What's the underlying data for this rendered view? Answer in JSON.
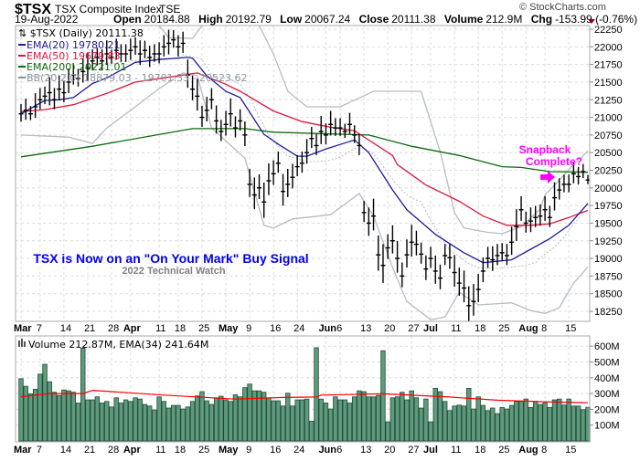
{
  "header": {
    "symbol": "$TSX",
    "name": "TSX Composite Index",
    "exchange": "TSE",
    "date": "19-Aug-2022",
    "open_label": "Open",
    "open": "20184.88",
    "high_label": "High",
    "high": "20192.79",
    "low_label": "Low",
    "low": "20067.24",
    "close_label": "Close",
    "close": "20111.38",
    "volume_label": "Volume",
    "volume": "212.9M",
    "chg_label": "Chg",
    "chg": "-153.99 (-0.76%)",
    "watermark": "© StockCharts.com"
  },
  "colors": {
    "ema20": "#1c1c9c",
    "ema50": "#e0143c",
    "ema200": "#0a6a0a",
    "bb": "#b4bcc4",
    "vol_fill": "#5f9a7c",
    "vol_stroke": "#1f4d37",
    "vol_ema": "#ff0000",
    "annot_main": "#0000ee",
    "annot_sub": "#808080",
    "annot_snap": "#ff00ff"
  },
  "legend": {
    "price": "⇅ $TSX (Daily) 20111.38",
    "ema20": "EMA(20) 19780.21",
    "ema50": "EMA(50) 19679.83",
    "ema200": "EMA(200) 20221.01",
    "bb": "BB(20,2.0) 18879.03 - 19701.33 - 20523.62",
    "volume": "Volume 212.87M, EMA(34) 241.64M"
  },
  "annotations": {
    "main": "TSX is Now on an \"On Your Mark\" Buy Signal",
    "sub": "2022 Technical Watch",
    "snap1": "Snapback",
    "snap2": "Complete?"
  },
  "chart_data": {
    "type": "ohlc-bar",
    "title": "TSX Composite Index (Daily)",
    "price_ticks": [
      22250,
      22000,
      21750,
      21500,
      21250,
      21000,
      20750,
      20500,
      20250,
      20000,
      19750,
      19500,
      19250,
      19000,
      18750,
      18500,
      18250
    ],
    "ylim": [
      18200,
      22300
    ],
    "volume_ticks": [
      {
        "v": 600,
        "label": "600M"
      },
      {
        "v": 500,
        "label": "500M"
      },
      {
        "v": 400,
        "label": "400M"
      },
      {
        "v": 300,
        "label": "300M"
      },
      {
        "v": 200,
        "label": "200M"
      },
      {
        "v": 100,
        "label": "100M"
      }
    ],
    "date_labels": [
      {
        "i": 0,
        "label": "Mar",
        "bold": true
      },
      {
        "i": 4,
        "label": "7"
      },
      {
        "i": 9,
        "label": "14"
      },
      {
        "i": 14,
        "label": "21"
      },
      {
        "i": 19,
        "label": "28"
      },
      {
        "i": 23,
        "label": "Apr",
        "bold": true
      },
      {
        "i": 29,
        "label": "11"
      },
      {
        "i": 33,
        "label": "18"
      },
      {
        "i": 38,
        "label": "25"
      },
      {
        "i": 43,
        "label": "May",
        "bold": true
      },
      {
        "i": 48,
        "label": "9"
      },
      {
        "i": 53,
        "label": "16"
      },
      {
        "i": 58,
        "label": "24"
      },
      {
        "i": 64,
        "label": "Jun",
        "bold": true
      },
      {
        "i": 67,
        "label": "6"
      },
      {
        "i": 72,
        "label": "13"
      },
      {
        "i": 77,
        "label": "20"
      },
      {
        "i": 82,
        "label": "27"
      },
      {
        "i": 86,
        "label": "Jul",
        "bold": true
      },
      {
        "i": 91,
        "label": "11"
      },
      {
        "i": 96,
        "label": "18"
      },
      {
        "i": 101,
        "label": "25"
      },
      {
        "i": 106,
        "label": "Aug",
        "bold": true
      },
      {
        "i": 110,
        "label": "8"
      },
      {
        "i": 115,
        "label": "15"
      }
    ],
    "close": [
      21050,
      21100,
      21050,
      21150,
      21250,
      21300,
      21350,
      21250,
      21400,
      21350,
      21500,
      21600,
      21550,
      21650,
      21700,
      21800,
      21850,
      21800,
      21900,
      21850,
      21950,
      21900,
      21900,
      21950,
      22000,
      21900,
      21950,
      21850,
      21900,
      21900,
      22000,
      22050,
      22100,
      22000,
      22050,
      21600,
      21400,
      21300,
      21000,
      21100,
      21250,
      20950,
      20800,
      20900,
      21050,
      20850,
      20950,
      20750,
      20050,
      19900,
      20000,
      19800,
      20100,
      20200,
      20350,
      19950,
      20050,
      20150,
      20300,
      20350,
      20500,
      20700,
      20600,
      20800,
      20750,
      20900,
      20850,
      20850,
      20800,
      20900,
      20750,
      20600,
      19650,
      19500,
      19600,
      19050,
      18900,
      19150,
      19250,
      19000,
      18750,
      19050,
      19230,
      19200,
      19060,
      18850,
      19000,
      18820,
      18720,
      19040,
      19010,
      18800,
      18650,
      18580,
      18330,
      18390,
      18560,
      18820,
      19000,
      18980,
      19040,
      19080,
      19040,
      19230,
      19450,
      19690,
      19500,
      19530,
      19580,
      19600,
      19690,
      19580,
      19860,
      19970,
      20050,
      20050,
      20200,
      20160,
      20230,
      20111.38
    ],
    "range": [
      250,
      300,
      200,
      350,
      300,
      250,
      400,
      300,
      350,
      300,
      350,
      300,
      250,
      350,
      400,
      300,
      250,
      300,
      350,
      200,
      300,
      250,
      250,
      300,
      250,
      350,
      250,
      300,
      250,
      300,
      300,
      350,
      250,
      300,
      300,
      400,
      350,
      450,
      300,
      350,
      300,
      400,
      300,
      350,
      400,
      300,
      300,
      350,
      400,
      450,
      350,
      500,
      450,
      350,
      300,
      450,
      400,
      350,
      300,
      300,
      350,
      300,
      300,
      400,
      300,
      350,
      250,
      250,
      200,
      300,
      250,
      300,
      300,
      400,
      450,
      500,
      550,
      350,
      400,
      450,
      350,
      400,
      450,
      350,
      300,
      350,
      300,
      400,
      350,
      300,
      350,
      450,
      400,
      450,
      500,
      450,
      400,
      350,
      300,
      350,
      300,
      250,
      300,
      400,
      450,
      350,
      300,
      350,
      300,
      300,
      350,
      300,
      400,
      300,
      250,
      250,
      300,
      250,
      200,
      130
    ],
    "ema20": [
      [
        0,
        21050
      ],
      [
        5,
        21240
      ],
      [
        8,
        21250
      ],
      [
        11,
        21280
      ],
      [
        15,
        21480
      ],
      [
        18,
        21560
      ],
      [
        24,
        21780
      ],
      [
        29,
        21820
      ],
      [
        35,
        21850
      ],
      [
        36,
        21840
      ],
      [
        39,
        21590
      ],
      [
        43,
        21370
      ],
      [
        46,
        21280
      ],
      [
        51,
        20760
      ],
      [
        54,
        20620
      ],
      [
        58,
        20450
      ],
      [
        60,
        20450
      ],
      [
        64,
        20550
      ],
      [
        70,
        20680
      ],
      [
        73,
        20500
      ],
      [
        78,
        19970
      ],
      [
        81,
        19690
      ],
      [
        87,
        19340
      ],
      [
        93,
        19080
      ],
      [
        97,
        18940
      ],
      [
        103,
        18980
      ],
      [
        107,
        19130
      ],
      [
        111,
        19280
      ],
      [
        115,
        19470
      ],
      [
        119,
        19780.21
      ]
    ],
    "ema50": [
      [
        0,
        21080
      ],
      [
        5,
        21110
      ],
      [
        11,
        21180
      ],
      [
        18,
        21340
      ],
      [
        24,
        21500
      ],
      [
        30,
        21560
      ],
      [
        37,
        21630
      ],
      [
        43,
        21470
      ],
      [
        46,
        21370
      ],
      [
        53,
        21090
      ],
      [
        59,
        20940
      ],
      [
        65,
        20860
      ],
      [
        70,
        20810
      ],
      [
        78,
        20460
      ],
      [
        79,
        20330
      ],
      [
        85,
        20040
      ],
      [
        92,
        19810
      ],
      [
        97,
        19600
      ],
      [
        102,
        19470
      ],
      [
        107,
        19470
      ],
      [
        111,
        19490
      ],
      [
        115,
        19580
      ],
      [
        119,
        19679.83
      ]
    ],
    "ema200": [
      [
        0,
        20440
      ],
      [
        15,
        20590
      ],
      [
        36,
        20840
      ],
      [
        47,
        20840
      ],
      [
        53,
        20790
      ],
      [
        73,
        20750
      ],
      [
        82,
        20590
      ],
      [
        92,
        20460
      ],
      [
        101,
        20300
      ],
      [
        105,
        20290
      ],
      [
        111,
        20230
      ],
      [
        119,
        20221.01
      ]
    ],
    "bb_upper": [
      [
        0,
        22400
      ],
      [
        20,
        22600
      ],
      [
        29,
        22300
      ],
      [
        31,
        22130
      ],
      [
        36,
        22120
      ],
      [
        38,
        22300
      ],
      [
        45,
        22500
      ],
      [
        50,
        22300
      ],
      [
        53,
        21900
      ],
      [
        56,
        21370
      ],
      [
        60,
        21150
      ],
      [
        67,
        21150
      ],
      [
        74,
        21370
      ],
      [
        84,
        21370
      ],
      [
        88,
        20510
      ],
      [
        91,
        19650
      ],
      [
        93,
        19430
      ],
      [
        98,
        19370
      ],
      [
        101,
        19350
      ],
      [
        105,
        19450
      ],
      [
        109,
        19700
      ],
      [
        110,
        19900
      ],
      [
        113,
        20110
      ],
      [
        116,
        20330
      ],
      [
        119,
        20523.62
      ]
    ],
    "bb_lower": [
      [
        0,
        20750
      ],
      [
        10,
        20720
      ],
      [
        15,
        20630
      ],
      [
        18,
        20850
      ],
      [
        24,
        21150
      ],
      [
        29,
        21410
      ],
      [
        34,
        21630
      ],
      [
        37,
        21590
      ],
      [
        40,
        20850
      ],
      [
        47,
        20420
      ],
      [
        51,
        19470
      ],
      [
        53,
        19430
      ],
      [
        57,
        19560
      ],
      [
        65,
        19620
      ],
      [
        71,
        19920
      ],
      [
        74,
        19600
      ],
      [
        78,
        18870
      ],
      [
        81,
        18390
      ],
      [
        86,
        18130
      ],
      [
        89,
        18170
      ],
      [
        92,
        18520
      ],
      [
        96,
        18340
      ],
      [
        103,
        18370
      ],
      [
        107,
        18260
      ],
      [
        110,
        18220
      ],
      [
        113,
        18300
      ],
      [
        116,
        18650
      ],
      [
        119,
        18879.03
      ]
    ],
    "volume_m": [
      394,
      346,
      298,
      327,
      423,
      485,
      375,
      308,
      288,
      323,
      317,
      308,
      240,
      587,
      260,
      260,
      279,
      240,
      250,
      215,
      273,
      240,
      260,
      250,
      273,
      265,
      231,
      221,
      196,
      279,
      250,
      208,
      225,
      225,
      202,
      215,
      250,
      285,
      312,
      254,
      231,
      273,
      283,
      260,
      250,
      292,
      279,
      337,
      360,
      317,
      317,
      308,
      273,
      254,
      254,
      221,
      302,
      221,
      260,
      260,
      265,
      125,
      590,
      265,
      240,
      202,
      279,
      260,
      260,
      240,
      279,
      317,
      312,
      279,
      279,
      288,
      571,
      121,
      273,
      279,
      308,
      260,
      317,
      273,
      208,
      265,
      121,
      333,
      312,
      250,
      192,
      221,
      227,
      221,
      333,
      202,
      279,
      225,
      192,
      208,
      173,
      212,
      202,
      225,
      250,
      250,
      265,
      212,
      250,
      231,
      240,
      212,
      260,
      265,
      227,
      265,
      221,
      221,
      198,
      212.87
    ],
    "volume_ema34": [
      [
        0,
        280
      ],
      [
        6,
        300
      ],
      [
        13,
        300
      ],
      [
        15,
        320
      ],
      [
        30,
        290
      ],
      [
        45,
        265
      ],
      [
        55,
        275
      ],
      [
        62,
        278
      ],
      [
        63,
        290
      ],
      [
        76,
        298
      ],
      [
        90,
        278
      ],
      [
        100,
        258
      ],
      [
        110,
        248
      ],
      [
        119,
        241.64
      ]
    ]
  }
}
